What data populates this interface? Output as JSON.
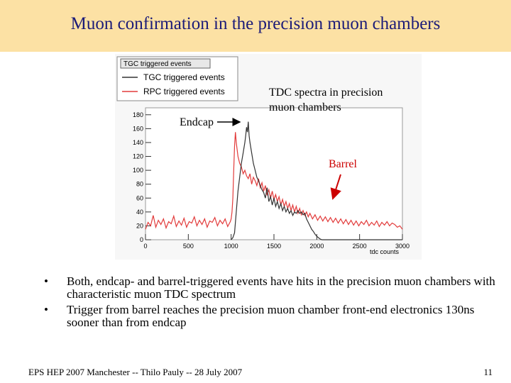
{
  "slide": {
    "title": "Muon confirmation in the precision muon chambers",
    "annotations": {
      "endcap": "Endcap",
      "tdc_spectra": "TDC spectra in precision muon chambers",
      "barrel": "Barrel"
    },
    "bullets": [
      "Both, endcap- and barrel-triggered events have hits in the precision muon chambers with characteristic muon TDC spectrum",
      "Trigger from barrel reaches the precision muon chamber front-end electronics 130ns sooner than from endcap"
    ],
    "bullet_glyph": "•",
    "footer": {
      "left": "EPS HEP 2007 Manchester  --  Thilo Pauly  --  28 July 2007",
      "page_number": "11"
    }
  },
  "colors": {
    "title_bar": "#fce1a4",
    "title_text": "#1b1b78",
    "tgc_series": "#333333",
    "rpc_series": "#e23b3b",
    "arrow_barrel": "#cc0000"
  },
  "chart_data": {
    "type": "line",
    "title": "TGC triggered events",
    "xlabel": "tdc counts",
    "ylabel": "",
    "xlim": [
      0,
      3000
    ],
    "ylim": [
      0,
      190
    ],
    "x_ticks": [
      0,
      500,
      1000,
      1500,
      2000,
      2500,
      3000
    ],
    "y_ticks": [
      0,
      20,
      40,
      60,
      80,
      100,
      120,
      140,
      160,
      180
    ],
    "legend_position": "top-left",
    "series": [
      {
        "name": "TGC triggered events",
        "color": "#333333",
        "points": [
          [
            1000,
            0
          ],
          [
            1020,
            3
          ],
          [
            1040,
            10
          ],
          [
            1060,
            40
          ],
          [
            1080,
            70
          ],
          [
            1100,
            90
          ],
          [
            1120,
            110
          ],
          [
            1140,
            125
          ],
          [
            1160,
            140
          ],
          [
            1170,
            150
          ],
          [
            1180,
            162
          ],
          [
            1190,
            155
          ],
          [
            1200,
            170
          ],
          [
            1210,
            150
          ],
          [
            1220,
            140
          ],
          [
            1240,
            125
          ],
          [
            1260,
            110
          ],
          [
            1280,
            100
          ],
          [
            1300,
            90
          ],
          [
            1320,
            85
          ],
          [
            1340,
            78
          ],
          [
            1360,
            72
          ],
          [
            1380,
            68
          ],
          [
            1400,
            60
          ],
          [
            1420,
            75
          ],
          [
            1440,
            55
          ],
          [
            1460,
            62
          ],
          [
            1480,
            50
          ],
          [
            1500,
            60
          ],
          [
            1520,
            48
          ],
          [
            1540,
            55
          ],
          [
            1560,
            45
          ],
          [
            1580,
            52
          ],
          [
            1600,
            42
          ],
          [
            1620,
            48
          ],
          [
            1640,
            40
          ],
          [
            1660,
            45
          ],
          [
            1680,
            38
          ],
          [
            1700,
            42
          ],
          [
            1720,
            35
          ],
          [
            1740,
            40
          ],
          [
            1760,
            38
          ],
          [
            1780,
            42
          ],
          [
            1800,
            38
          ],
          [
            1820,
            40
          ],
          [
            1840,
            36
          ],
          [
            1860,
            38
          ],
          [
            1880,
            30
          ],
          [
            1900,
            25
          ],
          [
            1920,
            20
          ],
          [
            1940,
            15
          ],
          [
            1960,
            12
          ],
          [
            1980,
            8
          ],
          [
            2000,
            5
          ],
          [
            2020,
            3
          ],
          [
            2040,
            1
          ],
          [
            2060,
            0
          ],
          [
            3000,
            0
          ]
        ]
      },
      {
        "name": "RPC triggered events",
        "color": "#e23b3b",
        "points": [
          [
            0,
            15
          ],
          [
            30,
            25
          ],
          [
            60,
            20
          ],
          [
            90,
            35
          ],
          [
            120,
            18
          ],
          [
            150,
            28
          ],
          [
            180,
            22
          ],
          [
            210,
            30
          ],
          [
            240,
            17
          ],
          [
            270,
            26
          ],
          [
            300,
            23
          ],
          [
            330,
            34
          ],
          [
            360,
            19
          ],
          [
            390,
            27
          ],
          [
            420,
            21
          ],
          [
            450,
            31
          ],
          [
            480,
            18
          ],
          [
            510,
            26
          ],
          [
            540,
            24
          ],
          [
            570,
            33
          ],
          [
            600,
            20
          ],
          [
            630,
            28
          ],
          [
            660,
            22
          ],
          [
            690,
            30
          ],
          [
            720,
            18
          ],
          [
            750,
            27
          ],
          [
            780,
            25
          ],
          [
            810,
            32
          ],
          [
            840,
            20
          ],
          [
            870,
            28
          ],
          [
            900,
            23
          ],
          [
            930,
            30
          ],
          [
            960,
            19
          ],
          [
            990,
            26
          ],
          [
            1000,
            30
          ],
          [
            1010,
            40
          ],
          [
            1020,
            60
          ],
          [
            1030,
            100
          ],
          [
            1040,
            135
          ],
          [
            1050,
            155
          ],
          [
            1060,
            140
          ],
          [
            1070,
            130
          ],
          [
            1080,
            120
          ],
          [
            1100,
            110
          ],
          [
            1120,
            105
          ],
          [
            1140,
            95
          ],
          [
            1160,
            100
          ],
          [
            1180,
            92
          ],
          [
            1200,
            88
          ],
          [
            1220,
            95
          ],
          [
            1240,
            80
          ],
          [
            1260,
            90
          ],
          [
            1280,
            85
          ],
          [
            1300,
            78
          ],
          [
            1320,
            88
          ],
          [
            1340,
            75
          ],
          [
            1360,
            82
          ],
          [
            1380,
            70
          ],
          [
            1400,
            78
          ],
          [
            1420,
            65
          ],
          [
            1440,
            72
          ],
          [
            1460,
            60
          ],
          [
            1480,
            70
          ],
          [
            1500,
            58
          ],
          [
            1520,
            65
          ],
          [
            1540,
            55
          ],
          [
            1560,
            62
          ],
          [
            1580,
            50
          ],
          [
            1600,
            58
          ],
          [
            1620,
            48
          ],
          [
            1640,
            55
          ],
          [
            1660,
            45
          ],
          [
            1680,
            52
          ],
          [
            1700,
            42
          ],
          [
            1720,
            50
          ],
          [
            1740,
            40
          ],
          [
            1760,
            48
          ],
          [
            1780,
            38
          ],
          [
            1800,
            45
          ],
          [
            1820,
            36
          ],
          [
            1840,
            42
          ],
          [
            1860,
            35
          ],
          [
            1880,
            40
          ],
          [
            1900,
            33
          ],
          [
            1920,
            38
          ],
          [
            1950,
            30
          ],
          [
            1980,
            36
          ],
          [
            2010,
            28
          ],
          [
            2040,
            34
          ],
          [
            2070,
            27
          ],
          [
            2100,
            33
          ],
          [
            2130,
            26
          ],
          [
            2160,
            32
          ],
          [
            2190,
            25
          ],
          [
            2220,
            31
          ],
          [
            2250,
            24
          ],
          [
            2280,
            30
          ],
          [
            2310,
            23
          ],
          [
            2340,
            29
          ],
          [
            2370,
            22
          ],
          [
            2400,
            28
          ],
          [
            2430,
            21
          ],
          [
            2460,
            27
          ],
          [
            2490,
            20
          ],
          [
            2520,
            26
          ],
          [
            2550,
            22
          ],
          [
            2580,
            28
          ],
          [
            2610,
            20
          ],
          [
            2640,
            25
          ],
          [
            2670,
            21
          ],
          [
            2700,
            27
          ],
          [
            2730,
            19
          ],
          [
            2760,
            25
          ],
          [
            2790,
            21
          ],
          [
            2820,
            26
          ],
          [
            2850,
            20
          ],
          [
            2880,
            24
          ],
          [
            2910,
            22
          ],
          [
            2940,
            18
          ],
          [
            2970,
            20
          ],
          [
            3000,
            15
          ]
        ]
      }
    ]
  }
}
